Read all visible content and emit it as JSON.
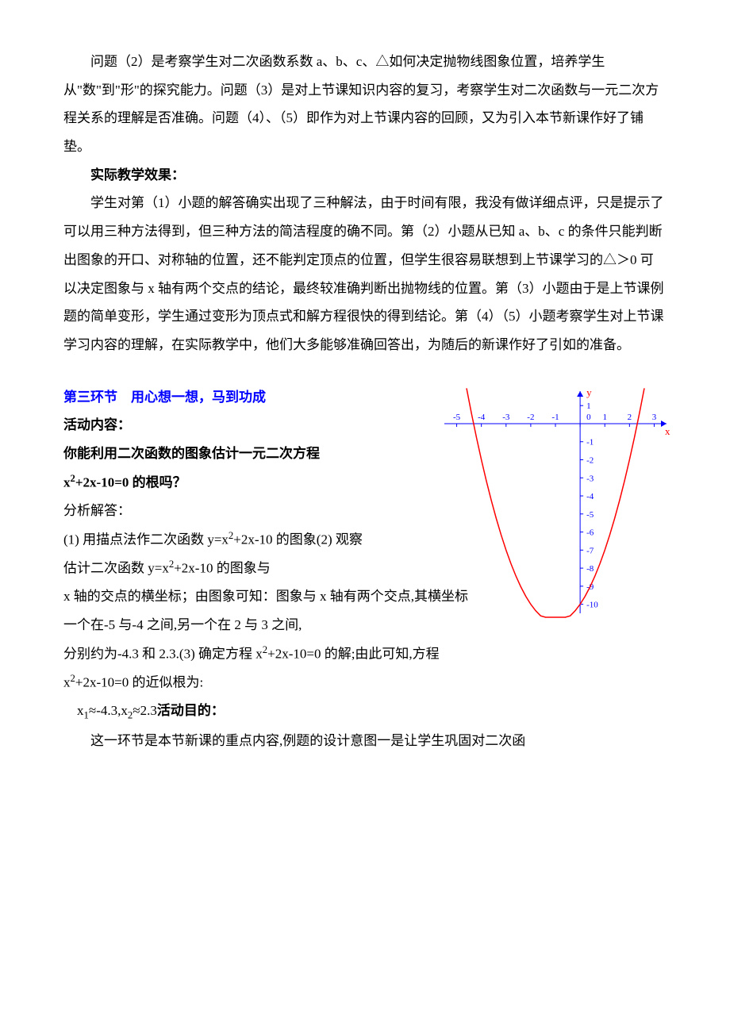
{
  "intro": {
    "p1": "问题（2）是考察学生对二次函数系数 a、b、c、△如何决定抛物线图象位置，培养学生从\"数\"到\"形\"的探究能力。问题（3）是对上节课知识内容的复习，考察学生对二次函数与一元二次方程关系的理解是否准确。问题（4）、（5）即作为对上节课内容的回顾，又为引入本节新课作好了铺垫。",
    "h1": "实际教学效果：",
    "p2": "学生对第（1）小题的解答确实出现了三种解法，由于时间有限，我没有做详细点评，只是提示了可以用三种方法得到，但三种方法的简洁程度的确不同。第（2）小题从已知 a、b、c 的条件只能判断出图象的开口、对称轴的位置，还不能判定顶点的位置，但学生很容易联想到上节课学习的△＞0 可以决定图象与 x 轴有两个交点的结论，最终较准确判断出抛物线的位置。第（3）小题由于是上节课例题的简单变形，学生通过变形为顶点式和解方程很快的得到结论。第（4）（5）小题考察学生对上节课学习内容的理解，在实际教学中，他们大多能够准确回答出，为随后的新课作好了引如的准备。"
  },
  "section3": {
    "title": "第三环节　用心想一想，马到功成",
    "activity_label": "活动内容：",
    "question_line1": "你能利用二次函数的图象估计一元二次方程",
    "question_line2_pre": "x",
    "question_line2_sup": "2",
    "question_line2_mid": "+2x-10=0 的根吗？",
    "analysis_label": "分析解答：",
    "step1_pre": "(1) 用描点法作二次函数 y=x",
    "step1_sup": "2",
    "step1_post": "+2x-10 的图象(2) 观察",
    "step2_pre": "估计二次函数 y=x",
    "step2_sup": "2",
    "step2_post": "+2x-10 的图象与",
    "step3": "x 轴的交点的横坐标；由图象可知：图象与 x 轴有两个交点,其横坐标",
    "step4": "一个在-5 与-4 之间,另一个在 2 与 3 之间,",
    "step5_pre": "分别约为-4.3 和 2.3.(3) 确定方程 x",
    "step5_sup": "2",
    "step5_post": "+2x-10=0 的解;由此可知,方程",
    "step6_pre": "x",
    "step6_sup": "2",
    "step6_post": "+2x-10=0 的近似根为:",
    "roots_pre": "　x",
    "roots_sub1": "1",
    "roots_mid1": "≈-4.3,x",
    "roots_sub2": "2",
    "roots_mid2": "≈2.3",
    "purpose_label": "活动目的：",
    "purpose_text": "这一环节是本节新课的重点内容,例题的设计意图一是让学生巩固对二次函"
  },
  "chart": {
    "type": "line",
    "title": "",
    "x_axis_label": "x",
    "y_axis_label": "y",
    "x_ticks": [
      -5,
      -4,
      -3,
      -2,
      -1,
      0,
      1,
      2,
      3
    ],
    "y_ticks_pos": [
      1
    ],
    "y_ticks_neg": [
      -1,
      -2,
      -3,
      -4,
      -5,
      -6,
      -7,
      -8,
      -9,
      -10
    ],
    "xlim": [
      -5.5,
      3.5
    ],
    "ylim": [
      -10.5,
      1.8
    ],
    "axis_color": "#0000ff",
    "tick_color": "#0000ff",
    "tick_label_color": "#0000ff",
    "tick_fontsize": 11,
    "curve_color": "#ff0000",
    "axis_label_color": "#ff0000",
    "curve_width": 1.5,
    "background_color": "#ffffff",
    "function": "y = x^2 + 2x - 10",
    "curve_points": [
      [
        -4.6,
        1.96
      ],
      [
        -4.4,
        0.56
      ],
      [
        -4.2,
        -0.76
      ],
      [
        -4.0,
        -2.0
      ],
      [
        -3.8,
        -3.16
      ],
      [
        -3.6,
        -4.24
      ],
      [
        -3.4,
        -5.24
      ],
      [
        -3.2,
        -6.16
      ],
      [
        -3.0,
        -7.0
      ],
      [
        -2.8,
        -7.76
      ],
      [
        -2.6,
        -8.44
      ],
      [
        -2.4,
        -9.04
      ],
      [
        -2.2,
        -9.56
      ],
      [
        -2.0,
        -10.0
      ],
      [
        -1.8,
        -10.36
      ],
      [
        -1.6,
        -10.64
      ],
      [
        -1.4,
        -10.84
      ],
      [
        -1.2,
        -10.96
      ],
      [
        -1.0,
        -11.0
      ],
      [
        -0.8,
        -10.96
      ],
      [
        -0.6,
        -10.84
      ],
      [
        -0.4,
        -10.64
      ],
      [
        -0.2,
        -10.36
      ],
      [
        0.0,
        -10.0
      ],
      [
        0.2,
        -9.56
      ],
      [
        0.4,
        -9.04
      ],
      [
        0.6,
        -8.44
      ],
      [
        0.8,
        -7.76
      ],
      [
        1.0,
        -7.0
      ],
      [
        1.2,
        -6.16
      ],
      [
        1.4,
        -5.24
      ],
      [
        1.6,
        -4.24
      ],
      [
        1.8,
        -3.16
      ],
      [
        2.0,
        -2.0
      ],
      [
        2.2,
        -0.76
      ],
      [
        2.4,
        0.56
      ],
      [
        2.6,
        1.96
      ]
    ]
  }
}
